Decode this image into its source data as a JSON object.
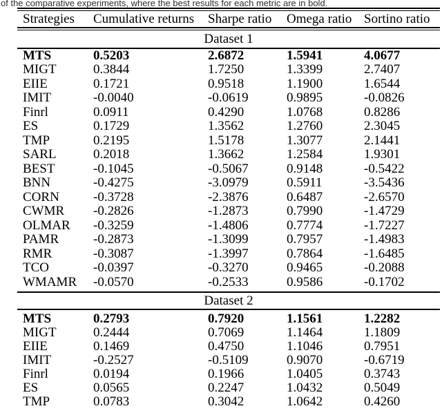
{
  "caption_fragment": "of the comparative experiments, where the best results for each metric are in bold.",
  "table": {
    "columns": [
      "Strategies",
      "Cumulative returns",
      "Sharpe ratio",
      "Omega ratio",
      "Sortino ratio"
    ],
    "sections": [
      {
        "label": "Dataset 1",
        "rows": [
          {
            "strategy": "MTS",
            "values": [
              "0.5203",
              "2.6872",
              "1.5941",
              "4.0677"
            ],
            "bold": true
          },
          {
            "strategy": "MIGT",
            "values": [
              "0.3844",
              "1.7250",
              "1.3399",
              "2.7407"
            ]
          },
          {
            "strategy": "EIIE",
            "values": [
              "0.1721",
              "0.9518",
              "1.1900",
              "1.6544"
            ]
          },
          {
            "strategy": "IMIT",
            "values": [
              "-0.0040",
              "-0.0619",
              "0.9895",
              "-0.0826"
            ]
          },
          {
            "strategy": "Finrl",
            "values": [
              "0.0911",
              "0.4290",
              "1.0768",
              "0.8286"
            ]
          },
          {
            "strategy": "ES",
            "values": [
              "0.1729",
              "1.3562",
              "1.2760",
              "2.3045"
            ]
          },
          {
            "strategy": "TMP",
            "values": [
              "0.2195",
              "1.5178",
              "1.3077",
              "2.1441"
            ]
          },
          {
            "strategy": "SARL",
            "values": [
              "0.2018",
              "1.3662",
              "1.2584",
              "1.9301"
            ]
          },
          {
            "strategy": "BEST",
            "values": [
              "-0.1045",
              "-0.5067",
              "0.9148",
              "-0.5422"
            ]
          },
          {
            "strategy": "BNN",
            "values": [
              "-0.4275",
              "-3.0979",
              "0.5911",
              "-3.5436"
            ]
          },
          {
            "strategy": "CORN",
            "values": [
              "-0.3728",
              "-2.3876",
              "0.6487",
              "-2.6570"
            ]
          },
          {
            "strategy": "CWMR",
            "values": [
              "-0.2826",
              "-1.2873",
              "0.7990",
              "-1.4729"
            ]
          },
          {
            "strategy": "OLMAR",
            "values": [
              "-0.3259",
              "-1.4806",
              "0.7774",
              "-1.7227"
            ]
          },
          {
            "strategy": "PAMR",
            "values": [
              "-0.2873",
              "-1.3099",
              "0.7957",
              "-1.4983"
            ]
          },
          {
            "strategy": "RMR",
            "values": [
              "-0.3087",
              "-1.3997",
              "0.7864",
              "-1.6485"
            ]
          },
          {
            "strategy": "TCO",
            "values": [
              "-0.0397",
              "-0.3270",
              "0.9465",
              "-0.2088"
            ]
          },
          {
            "strategy": "WMAMR",
            "values": [
              "-0.0570",
              "-0.2533",
              "0.9586",
              "-0.1702"
            ]
          }
        ]
      },
      {
        "label": "Dataset 2",
        "rows": [
          {
            "strategy": "MTS",
            "values": [
              "0.2793",
              "0.7920",
              "1.1561",
              "1.2282"
            ],
            "bold": true
          },
          {
            "strategy": "MIGT",
            "values": [
              "0.2444",
              "0.7069",
              "1.1464",
              "1.1809"
            ]
          },
          {
            "strategy": "EIIE",
            "values": [
              "0.1469",
              "0.4750",
              "1.1046",
              "0.7951"
            ]
          },
          {
            "strategy": "IMIT",
            "values": [
              "-0.2527",
              "-0.5109",
              "0.9070",
              "-0.6719"
            ]
          },
          {
            "strategy": "Finrl",
            "values": [
              "0.0194",
              "0.1966",
              "1.0405",
              "0.3743"
            ]
          },
          {
            "strategy": "ES",
            "values": [
              "0.0565",
              "0.2247",
              "1.0432",
              "0.5049"
            ]
          },
          {
            "strategy": "TMP",
            "values": [
              "0.0783",
              "0.3042",
              "1.0642",
              "0.4260"
            ]
          }
        ]
      }
    ]
  }
}
